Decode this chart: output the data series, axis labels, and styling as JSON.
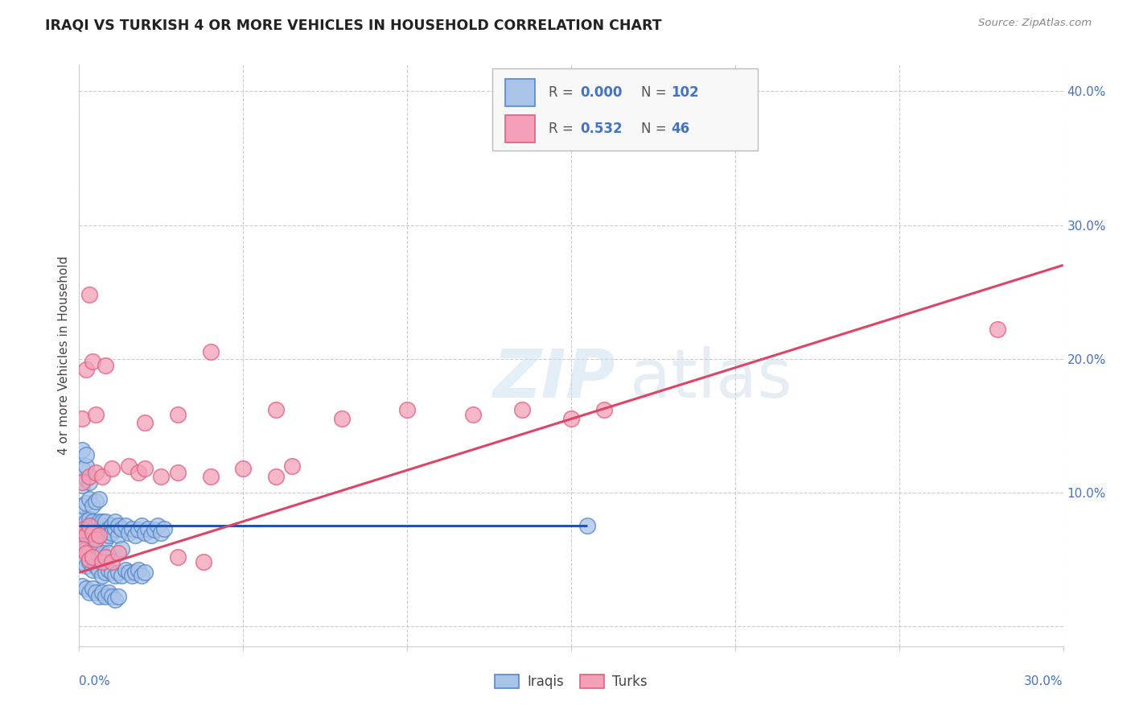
{
  "title": "IRAQI VS TURKISH 4 OR MORE VEHICLES IN HOUSEHOLD CORRELATION CHART",
  "source": "Source: ZipAtlas.com",
  "ylabel": "4 or more Vehicles in Household",
  "xlim": [
    0.0,
    0.3
  ],
  "ylim": [
    -0.015,
    0.42
  ],
  "ytick_values": [
    0.0,
    0.1,
    0.2,
    0.3,
    0.4
  ],
  "ytick_labels": [
    "",
    "10.0%",
    "20.0%",
    "30.0%",
    "40.0%"
  ],
  "xtick_values": [
    0.0,
    0.05,
    0.1,
    0.15,
    0.2,
    0.25,
    0.3
  ],
  "iraqi_color": "#aac4e8",
  "turk_color": "#f4a0b8",
  "iraqi_edge_color": "#5588cc",
  "turk_edge_color": "#e06080",
  "iraqi_line_color": "#2255aa",
  "turk_line_color": "#dd4466",
  "background_color": "#ffffff",
  "grid_color": "#cccccc",
  "iraqi_line_x": [
    0.0,
    0.155
  ],
  "iraqi_line_y": [
    0.075,
    0.075
  ],
  "turk_line_x": [
    0.0,
    0.3
  ],
  "turk_line_y": [
    0.04,
    0.27
  ],
  "iraqi_points": [
    [
      0.001,
      0.075
    ],
    [
      0.001,
      0.08
    ],
    [
      0.001,
      0.072
    ],
    [
      0.001,
      0.068
    ],
    [
      0.002,
      0.078
    ],
    [
      0.002,
      0.073
    ],
    [
      0.002,
      0.065
    ],
    [
      0.002,
      0.07
    ],
    [
      0.003,
      0.076
    ],
    [
      0.003,
      0.068
    ],
    [
      0.003,
      0.08
    ],
    [
      0.003,
      0.072
    ],
    [
      0.004,
      0.073
    ],
    [
      0.004,
      0.078
    ],
    [
      0.004,
      0.068
    ],
    [
      0.004,
      0.075
    ],
    [
      0.005,
      0.07
    ],
    [
      0.005,
      0.075
    ],
    [
      0.005,
      0.068
    ],
    [
      0.006,
      0.073
    ],
    [
      0.006,
      0.078
    ],
    [
      0.006,
      0.068
    ],
    [
      0.007,
      0.075
    ],
    [
      0.007,
      0.07
    ],
    [
      0.007,
      0.078
    ],
    [
      0.008,
      0.072
    ],
    [
      0.008,
      0.078
    ],
    [
      0.008,
      0.065
    ],
    [
      0.009,
      0.073
    ],
    [
      0.009,
      0.068
    ],
    [
      0.01,
      0.075
    ],
    [
      0.01,
      0.07
    ],
    [
      0.011,
      0.073
    ],
    [
      0.011,
      0.078
    ],
    [
      0.012,
      0.068
    ],
    [
      0.012,
      0.075
    ],
    [
      0.001,
      0.09
    ],
    [
      0.002,
      0.092
    ],
    [
      0.003,
      0.095
    ],
    [
      0.004,
      0.09
    ],
    [
      0.005,
      0.093
    ],
    [
      0.006,
      0.095
    ],
    [
      0.001,
      0.105
    ],
    [
      0.002,
      0.11
    ],
    [
      0.003,
      0.108
    ],
    [
      0.001,
      0.118
    ],
    [
      0.002,
      0.12
    ],
    [
      0.001,
      0.132
    ],
    [
      0.002,
      0.128
    ],
    [
      0.001,
      0.06
    ],
    [
      0.002,
      0.058
    ],
    [
      0.003,
      0.055
    ],
    [
      0.004,
      0.058
    ],
    [
      0.005,
      0.055
    ],
    [
      0.006,
      0.052
    ],
    [
      0.007,
      0.055
    ],
    [
      0.008,
      0.052
    ],
    [
      0.009,
      0.055
    ],
    [
      0.001,
      0.048
    ],
    [
      0.002,
      0.045
    ],
    [
      0.003,
      0.048
    ],
    [
      0.004,
      0.042
    ],
    [
      0.005,
      0.045
    ],
    [
      0.006,
      0.042
    ],
    [
      0.007,
      0.038
    ],
    [
      0.008,
      0.04
    ],
    [
      0.009,
      0.042
    ],
    [
      0.01,
      0.04
    ],
    [
      0.011,
      0.038
    ],
    [
      0.012,
      0.04
    ],
    [
      0.013,
      0.038
    ],
    [
      0.014,
      0.042
    ],
    [
      0.015,
      0.04
    ],
    [
      0.016,
      0.038
    ],
    [
      0.017,
      0.04
    ],
    [
      0.018,
      0.042
    ],
    [
      0.019,
      0.038
    ],
    [
      0.02,
      0.04
    ],
    [
      0.013,
      0.073
    ],
    [
      0.014,
      0.075
    ],
    [
      0.015,
      0.07
    ],
    [
      0.016,
      0.073
    ],
    [
      0.017,
      0.068
    ],
    [
      0.018,
      0.072
    ],
    [
      0.019,
      0.075
    ],
    [
      0.02,
      0.07
    ],
    [
      0.021,
      0.073
    ],
    [
      0.022,
      0.068
    ],
    [
      0.023,
      0.072
    ],
    [
      0.024,
      0.075
    ],
    [
      0.025,
      0.07
    ],
    [
      0.026,
      0.073
    ],
    [
      0.001,
      0.03
    ],
    [
      0.002,
      0.028
    ],
    [
      0.003,
      0.025
    ],
    [
      0.004,
      0.028
    ],
    [
      0.005,
      0.025
    ],
    [
      0.006,
      0.022
    ],
    [
      0.007,
      0.025
    ],
    [
      0.008,
      0.022
    ],
    [
      0.009,
      0.025
    ],
    [
      0.01,
      0.022
    ],
    [
      0.011,
      0.02
    ],
    [
      0.012,
      0.022
    ],
    [
      0.013,
      0.058
    ],
    [
      0.155,
      0.075
    ]
  ],
  "turk_points": [
    [
      0.001,
      0.072
    ],
    [
      0.002,
      0.068
    ],
    [
      0.003,
      0.075
    ],
    [
      0.004,
      0.07
    ],
    [
      0.005,
      0.065
    ],
    [
      0.006,
      0.068
    ],
    [
      0.001,
      0.058
    ],
    [
      0.002,
      0.055
    ],
    [
      0.003,
      0.05
    ],
    [
      0.004,
      0.052
    ],
    [
      0.007,
      0.048
    ],
    [
      0.008,
      0.052
    ],
    [
      0.01,
      0.048
    ],
    [
      0.012,
      0.055
    ],
    [
      0.03,
      0.052
    ],
    [
      0.038,
      0.048
    ],
    [
      0.001,
      0.108
    ],
    [
      0.003,
      0.112
    ],
    [
      0.005,
      0.115
    ],
    [
      0.007,
      0.112
    ],
    [
      0.01,
      0.118
    ],
    [
      0.015,
      0.12
    ],
    [
      0.018,
      0.115
    ],
    [
      0.02,
      0.118
    ],
    [
      0.025,
      0.112
    ],
    [
      0.03,
      0.115
    ],
    [
      0.04,
      0.112
    ],
    [
      0.05,
      0.118
    ],
    [
      0.06,
      0.112
    ],
    [
      0.065,
      0.12
    ],
    [
      0.001,
      0.155
    ],
    [
      0.005,
      0.158
    ],
    [
      0.02,
      0.152
    ],
    [
      0.03,
      0.158
    ],
    [
      0.06,
      0.162
    ],
    [
      0.08,
      0.155
    ],
    [
      0.1,
      0.162
    ],
    [
      0.12,
      0.158
    ],
    [
      0.135,
      0.162
    ],
    [
      0.15,
      0.155
    ],
    [
      0.16,
      0.162
    ],
    [
      0.002,
      0.192
    ],
    [
      0.004,
      0.198
    ],
    [
      0.008,
      0.195
    ],
    [
      0.04,
      0.205
    ],
    [
      0.003,
      0.248
    ],
    [
      0.28,
      0.222
    ]
  ]
}
